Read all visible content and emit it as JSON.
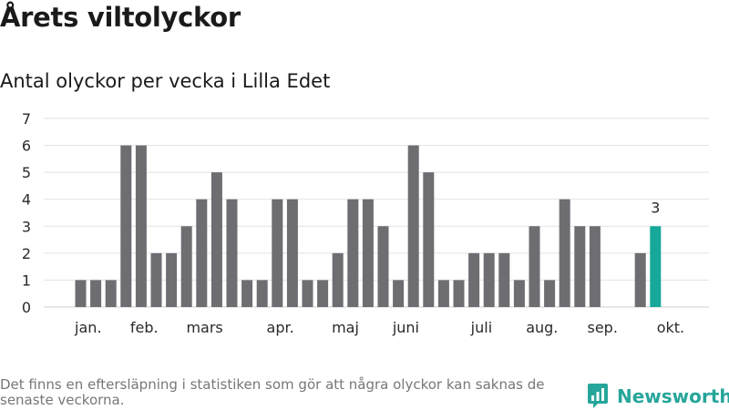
{
  "header": {
    "title": "Årets viltolyckor",
    "subtitle": "Antal olyckor per vecka i Lilla Edet"
  },
  "footer": {
    "note": "Det finns en eftersläpning i statistiken som gör att några olyckor kan saknas de senaste veckorna.",
    "brand": "Newsworthy"
  },
  "colors": {
    "bar": "#6d6d72",
    "highlight": "#16a99a",
    "grid": "#e2e2e2",
    "axis_text": "#2a2a2a",
    "brand": "#26a69a"
  },
  "chart_data": {
    "type": "bar",
    "title": "Antal olyckor per vecka i Lilla Edet",
    "xlabel": "",
    "ylabel": "",
    "ylim": [
      0,
      7
    ],
    "y_ticks": [
      "0",
      "1",
      "2",
      "3",
      "4",
      "5",
      "6",
      "7"
    ],
    "grid": true,
    "series": [
      {
        "name": "Antal olyckor",
        "values": [
          1,
          1,
          1,
          6,
          6,
          2,
          2,
          3,
          4,
          5,
          4,
          1,
          1,
          4,
          4,
          1,
          1,
          2,
          4,
          4,
          3,
          1,
          6,
          5,
          1,
          1,
          2,
          2,
          2,
          1,
          3,
          1,
          4,
          3,
          3,
          0,
          0,
          2,
          3
        ]
      }
    ],
    "highlight_index": 38,
    "annotation": {
      "index": 38,
      "text": "3"
    },
    "month_labels": [
      {
        "label": "jan.",
        "week_index": 0.5
      },
      {
        "label": "feb.",
        "week_index": 4.2
      },
      {
        "label": "mars",
        "week_index": 8.2
      },
      {
        "label": "apr.",
        "week_index": 13.2
      },
      {
        "label": "maj",
        "week_index": 17.5
      },
      {
        "label": "juni",
        "week_index": 21.5
      },
      {
        "label": "juli",
        "week_index": 26.5
      },
      {
        "label": "aug.",
        "week_index": 30.5
      },
      {
        "label": "sep.",
        "week_index": 34.5
      },
      {
        "label": "okt.",
        "week_index": 39.0
      }
    ]
  }
}
